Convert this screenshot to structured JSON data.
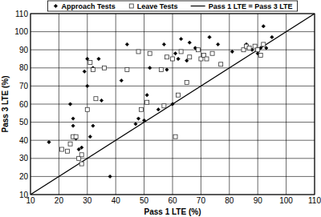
{
  "chart_data": {
    "type": "scatter",
    "x_label": "Pass 1 LTE (%)",
    "y_label": "Pass 3 LTE (%)",
    "xlim": [
      10,
      110
    ],
    "ylim": [
      10,
      110
    ],
    "xticks": [
      10,
      20,
      30,
      40,
      50,
      60,
      70,
      80,
      90,
      100,
      110
    ],
    "yticks": [
      10,
      20,
      30,
      40,
      50,
      60,
      70,
      80,
      90,
      100,
      110
    ],
    "grid": true,
    "legend": "top",
    "series": [
      {
        "name": "Approach Tests",
        "type": "scatter",
        "marker": "diamond",
        "color": "#000000",
        "x": [
          16.5,
          23,
          24,
          25,
          25,
          26,
          27,
          28,
          29,
          30,
          30,
          31,
          32,
          32,
          34,
          35,
          38,
          42,
          44,
          47,
          48,
          50,
          51,
          52,
          55,
          57,
          58,
          60,
          61,
          62,
          63,
          65,
          66,
          68,
          73,
          76,
          81,
          86,
          88,
          90,
          91,
          92,
          93,
          95
        ],
        "values": [
          39,
          34,
          60,
          52,
          48,
          41,
          35,
          36,
          78,
          85,
          70,
          42,
          48,
          80,
          85,
          62,
          20,
          73,
          93,
          49,
          52,
          51,
          65,
          80,
          57,
          93,
          79,
          60,
          88,
          85,
          96,
          84,
          94,
          91,
          97,
          93,
          89,
          93,
          90,
          88,
          91,
          103,
          91,
          97
        ]
      },
      {
        "name": "Leave Tests",
        "type": "scatter",
        "marker": "square",
        "color": "#333333",
        "x": [
          21,
          23,
          24,
          25,
          26,
          27,
          28,
          28,
          30,
          31,
          32,
          33,
          36,
          44,
          48,
          49,
          51,
          52,
          56,
          57,
          58,
          60,
          61,
          62,
          63,
          65,
          66,
          69,
          70,
          71,
          72,
          74,
          77,
          85,
          86,
          87,
          89,
          90,
          91,
          92
        ],
        "values": [
          35,
          34,
          38,
          42,
          42,
          30,
          27,
          32,
          57,
          83,
          79,
          63,
          80,
          79,
          89,
          57,
          61,
          88,
          79,
          59,
          86,
          85,
          42,
          65,
          89,
          72,
          86,
          90,
          85,
          87,
          85,
          88,
          82,
          90,
          92,
          91,
          92,
          90,
          87,
          93
        ]
      },
      {
        "name": "Pass 1 LTE = Pass 3 LTE",
        "type": "line",
        "line_style": "solid",
        "color": "#000000",
        "x": [
          10,
          110
        ],
        "values": [
          10,
          110
        ]
      }
    ]
  }
}
